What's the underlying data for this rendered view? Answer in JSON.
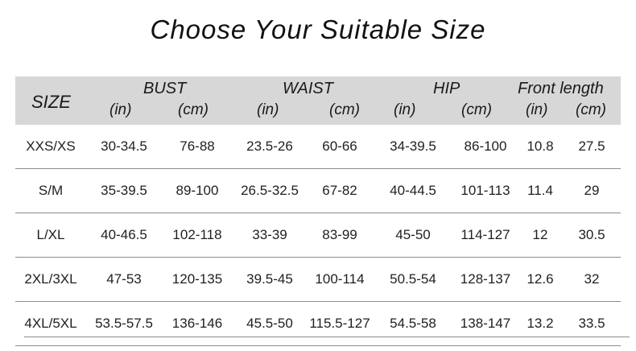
{
  "title": "Choose Your Suitable Size",
  "header": {
    "size": "SIZE",
    "bust": "BUST",
    "waist": "WAIST",
    "hip": "HIP",
    "front_length": "Front length",
    "units": [
      "(in)",
      "(cm)",
      "(in)",
      "(cm)",
      "(in)",
      "(cm)",
      "(in)",
      "(cm)"
    ]
  },
  "rows": [
    [
      "XXS/XS",
      "30-34.5",
      "76-88",
      "23.5-26",
      "60-66",
      "34-39.5",
      "86-100",
      "10.8",
      "27.5"
    ],
    [
      "S/M",
      "35-39.5",
      "89-100",
      "26.5-32.5",
      "67-82",
      "40-44.5",
      "101-113",
      "11.4",
      "29"
    ],
    [
      "L/XL",
      "40-46.5",
      "102-118",
      "33-39",
      "83-99",
      "45-50",
      "114-127",
      "12",
      "30.5"
    ],
    [
      "2XL/3XL",
      "47-53",
      "120-135",
      "39.5-45",
      "100-114",
      "50.5-54",
      "128-137",
      "12.6",
      "32"
    ],
    [
      "4XL/5XL",
      "53.5-57.5",
      "136-146",
      "45.5-50",
      "115.5-127",
      "54.5-58",
      "138-147",
      "13.2",
      "33.5"
    ]
  ]
}
